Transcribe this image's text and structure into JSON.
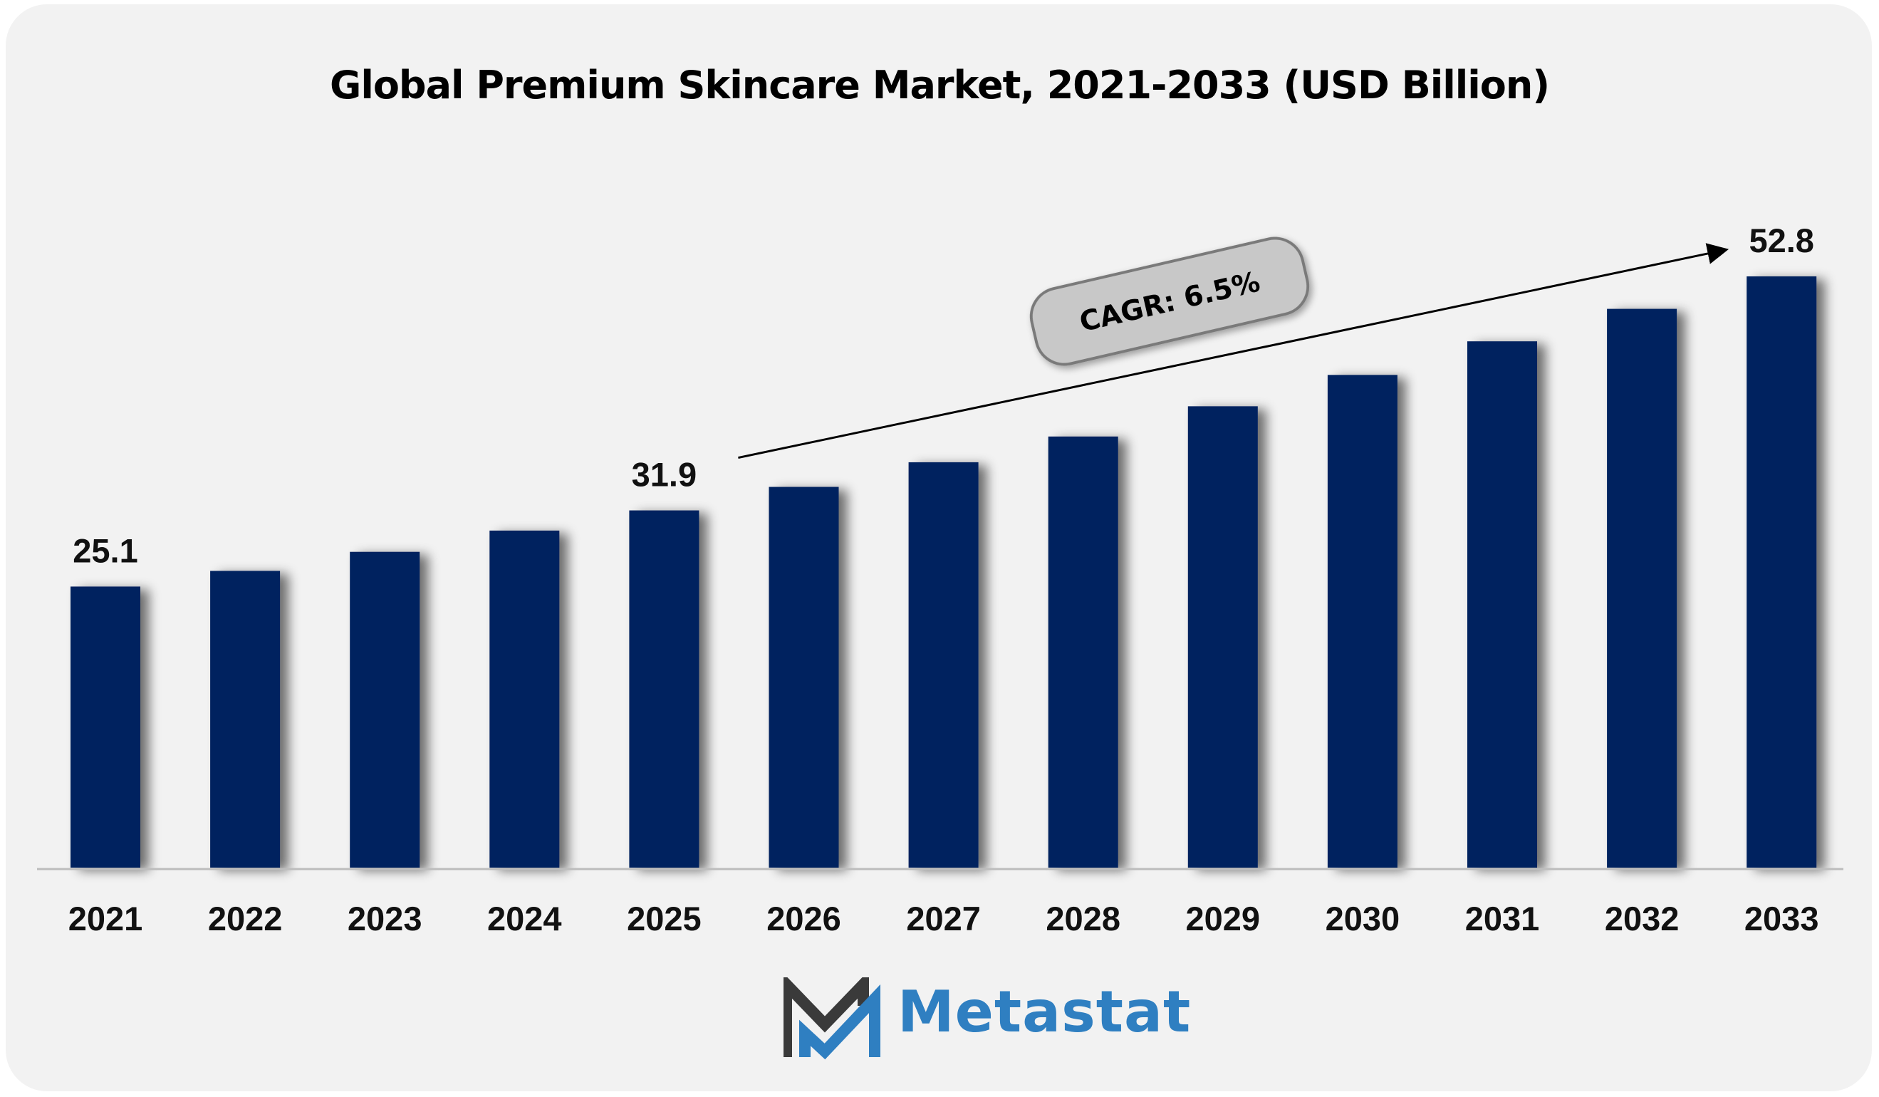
{
  "chart_data": {
    "type": "bar",
    "title": "Global Premium Skincare Market, 2021-2033 (USD Billion)",
    "categories": [
      "2021",
      "2022",
      "2023",
      "2024",
      "2025",
      "2026",
      "2027",
      "2028",
      "2029",
      "2030",
      "2031",
      "2032",
      "2033"
    ],
    "values": [
      25.1,
      26.5,
      28.2,
      30.1,
      31.9,
      34.0,
      36.2,
      38.5,
      41.2,
      44.0,
      47.0,
      49.9,
      52.8
    ],
    "data_labels": {
      "2021": "25.1",
      "2025": "31.9",
      "2033": "52.8"
    },
    "xlabel": "",
    "ylabel": "",
    "ylim": [
      0,
      52.8
    ],
    "grid": false,
    "bar_color": "#03205e",
    "annotation": {
      "text": "CAGR: 6.5%",
      "from": "2025",
      "to": "2033"
    }
  },
  "logo": {
    "text": "Metastat",
    "mark_color_dark": "#3a3a3a",
    "mark_color_blue": "#2f7fc1"
  },
  "colors": {
    "background": "#f2f2f2",
    "bar": "#03205e",
    "axis": "#bdbdbd"
  }
}
